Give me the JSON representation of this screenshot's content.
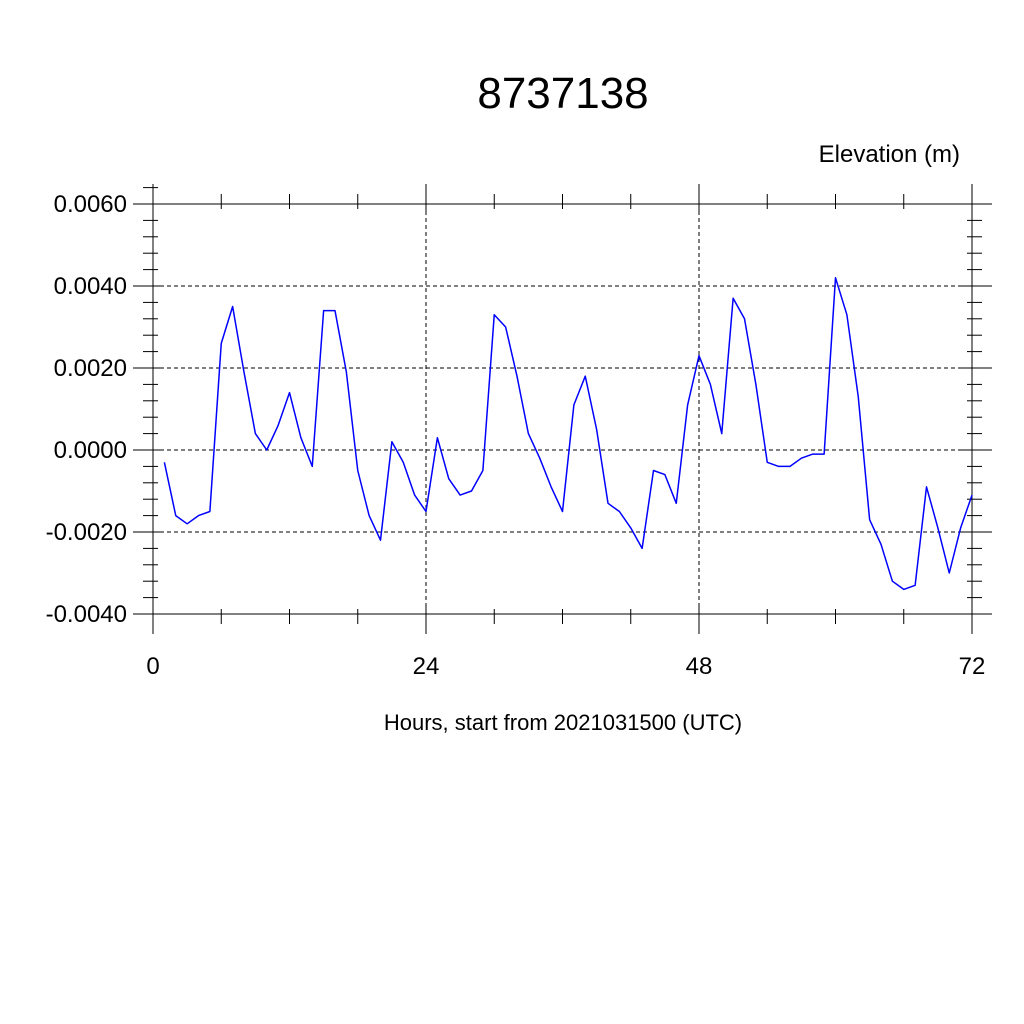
{
  "chart_data": {
    "type": "line",
    "title": "8737138",
    "ylabel": "Elevation (m)",
    "xlabel": "Hours, start from 2021031500 (UTC)",
    "xlim": [
      0,
      72
    ],
    "ylim": [
      -0.004,
      0.006
    ],
    "x_ticks": [
      0,
      24,
      48,
      72
    ],
    "x_tick_labels": [
      "0",
      "24",
      "48",
      "72"
    ],
    "y_ticks": [
      -0.004,
      -0.002,
      0.0,
      0.002,
      0.004,
      0.006
    ],
    "y_tick_labels": [
      "-0.0040",
      "-0.0020",
      "0.0000",
      "0.0020",
      "0.0040",
      "0.0060"
    ],
    "grid": true,
    "series": [
      {
        "color": "#0000ff",
        "x": [
          1,
          2,
          3,
          4,
          5,
          6,
          7,
          8,
          9,
          10,
          11,
          12,
          13,
          14,
          15,
          16,
          17,
          18,
          19,
          20,
          21,
          22,
          23,
          24,
          25,
          26,
          27,
          28,
          29,
          30,
          31,
          32,
          33,
          34,
          35,
          36,
          37,
          38,
          39,
          40,
          41,
          42,
          43,
          44,
          45,
          46,
          47,
          48,
          49,
          50,
          51,
          52,
          53,
          54,
          55,
          56,
          57,
          58,
          59,
          60,
          61,
          62,
          63,
          64,
          65,
          66,
          67,
          68,
          69,
          70,
          71,
          72
        ],
        "y": [
          -0.0003,
          -0.0016,
          -0.0018,
          -0.0016,
          -0.0015,
          0.0026,
          0.0035,
          0.0019,
          0.0004,
          0.0,
          0.0006,
          0.0014,
          0.0003,
          -0.0004,
          0.0034,
          0.0034,
          0.0019,
          -0.0005,
          -0.0016,
          -0.0022,
          0.0002,
          -0.0003,
          -0.0011,
          -0.0015,
          0.0003,
          -0.0007,
          -0.0011,
          -0.001,
          -0.0005,
          0.0033,
          0.003,
          0.0018,
          0.0004,
          -0.0002,
          -0.0009,
          -0.0015,
          0.0011,
          0.0018,
          0.0005,
          -0.0013,
          -0.0015,
          -0.0019,
          -0.0024,
          -0.0005,
          -0.0006,
          -0.0013,
          0.0011,
          0.0023,
          0.0016,
          0.0004,
          0.0037,
          0.0032,
          0.0016,
          -0.0003,
          -0.0004,
          -0.0004,
          -0.0002,
          -0.0001,
          -0.0001,
          0.0042,
          0.0033,
          0.0013,
          -0.0017,
          -0.0023,
          -0.0032,
          -0.0034,
          -0.0033,
          -0.0009,
          -0.0019,
          -0.003,
          -0.0019,
          -0.0011
        ]
      }
    ]
  }
}
